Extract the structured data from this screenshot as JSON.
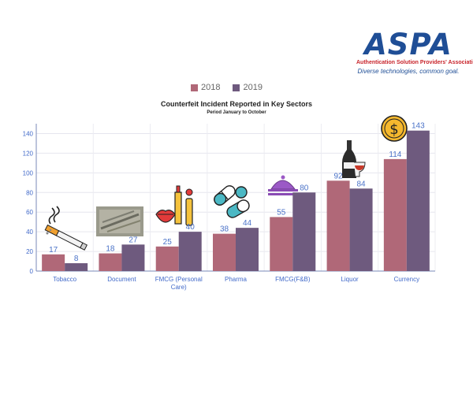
{
  "logo": {
    "word": "ASPA",
    "line1": "Authentication Solution Providers' Association",
    "line2": "Diverse technologies, common goal."
  },
  "colors": {
    "series_2018": "#b06878",
    "series_2019": "#6e5a7e",
    "axis_text": "#4169c9",
    "brand_blue": "#1f4e96",
    "brand_red": "#c8242b"
  },
  "icons": [
    "cigarette-icon",
    "document-photo",
    "lipstick-icon",
    "pills-icon",
    "food-cloche-icon",
    "wine-bottle-icon",
    "coin-icon"
  ],
  "chart_data": {
    "type": "bar",
    "title": "Counterfeit Incident Reported in Key Sectors",
    "subtitle": "Period January to October",
    "categories": [
      "Tobacco",
      "Document",
      "FMCG (Personal Care)",
      "Pharma",
      "FMCG(F&B)",
      "Liquor",
      "Currency"
    ],
    "categories_wrapped": [
      [
        "Tobacco"
      ],
      [
        "Document"
      ],
      [
        "FMCG (Personal",
        "Care)"
      ],
      [
        "Pharma"
      ],
      [
        "FMCG(F&B)"
      ],
      [
        "Liquor"
      ],
      [
        "Currency"
      ]
    ],
    "series": [
      {
        "name": "2018",
        "values": [
          17,
          18,
          25,
          38,
          55,
          92,
          114
        ]
      },
      {
        "name": "2019",
        "values": [
          8,
          27,
          40,
          44,
          80,
          84,
          143
        ]
      }
    ],
    "ylim": [
      0,
      150
    ],
    "yticks": [
      0,
      20,
      40,
      60,
      80,
      100,
      120,
      140
    ],
    "grid": true,
    "legend": "top"
  }
}
